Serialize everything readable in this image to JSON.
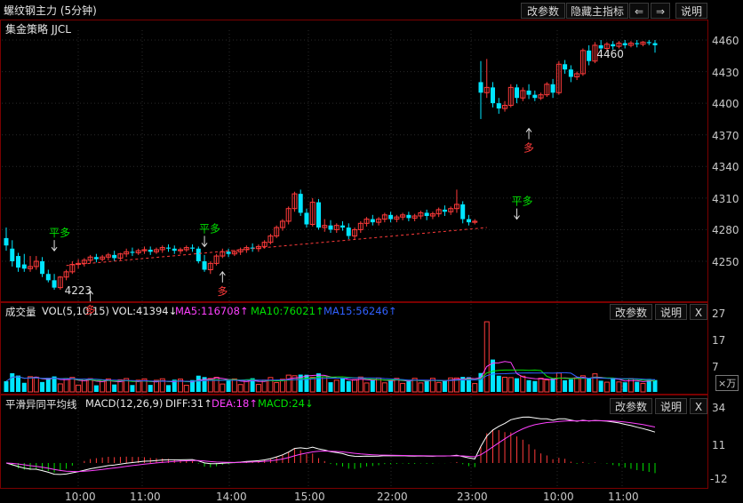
{
  "header": {
    "title": "螺纹钢主力 (5分钟)",
    "subtitle": "集金策略 JJCL",
    "buttons": [
      "改参数",
      "隐藏主指标",
      "⇐",
      "⇒",
      "说明"
    ]
  },
  "colors": {
    "up": "#ff3b3b",
    "down": "#00e5ff",
    "ma5": "#ff40ff",
    "ma10": "#00e000",
    "ma15": "#3060ff",
    "frame": "#7a0000",
    "signal_up": "#ff3b3b",
    "signal_green": "#00e000"
  },
  "chart_data": [
    {
      "type": "candlestick",
      "ylim": [
        4220,
        4475
      ],
      "yticks": [
        "4460",
        "4430",
        "4400",
        "4370",
        "4340",
        "4310",
        "4280",
        "4250"
      ],
      "xticks": [
        "10:00",
        "11:00",
        "14:00",
        "15:00",
        "22:00",
        "23:00",
        "10:00",
        "11:00"
      ],
      "annotations": [
        {
          "text": "平多",
          "color": "green",
          "at": 8,
          "price": 4260
        },
        {
          "text": "平多",
          "color": "green",
          "at": 33,
          "price": 4264
        },
        {
          "text": "多",
          "color": "red",
          "at": 36,
          "price": 4240
        },
        {
          "text": "多",
          "color": "red",
          "at": 14,
          "price": 4222
        },
        {
          "text": "平多",
          "color": "green",
          "at": 85,
          "price": 4290
        },
        {
          "text": "多",
          "color": "red",
          "at": 87,
          "price": 4376
        }
      ],
      "price_labels": [
        {
          "text": "4223",
          "price": 4223
        },
        {
          "text": "4460",
          "price": 4455
        }
      ],
      "candles": [
        [
          4272,
          4282,
          4265,
          4260
        ],
        [
          4262,
          4270,
          4250,
          4245
        ],
        [
          4255,
          4258,
          4244,
          4240
        ],
        [
          4247,
          4257,
          4243,
          4240
        ],
        [
          4243,
          4255,
          4245,
          4240
        ],
        [
          4245,
          4255,
          4250,
          4242
        ],
        [
          4250,
          4254,
          4238,
          4235
        ],
        [
          4238,
          4242,
          4232,
          4230
        ],
        [
          4232,
          4238,
          4225,
          4223
        ],
        [
          4225,
          4236,
          4235,
          4223
        ],
        [
          4235,
          4242,
          4240,
          4232
        ],
        [
          4240,
          4250,
          4247,
          4238
        ],
        [
          4247,
          4252,
          4248,
          4243
        ],
        [
          4248,
          4253,
          4251,
          4245
        ],
        [
          4251,
          4256,
          4254,
          4248
        ],
        [
          4254,
          4257,
          4252,
          4249
        ],
        [
          4252,
          4256,
          4254,
          4250
        ],
        [
          4254,
          4258,
          4256,
          4251
        ],
        [
          4256,
          4260,
          4253,
          4250
        ],
        [
          4253,
          4258,
          4257,
          4251
        ],
        [
          4257,
          4262,
          4259,
          4254
        ],
        [
          4259,
          4263,
          4258,
          4255
        ],
        [
          4258,
          4262,
          4260,
          4256
        ],
        [
          4260,
          4264,
          4261,
          4257
        ],
        [
          4261,
          4264,
          4259,
          4256
        ],
        [
          4259,
          4263,
          4261,
          4257
        ],
        [
          4261,
          4265,
          4263,
          4258
        ],
        [
          4263,
          4266,
          4262,
          4259
        ],
        [
          4262,
          4265,
          4260,
          4257
        ],
        [
          4260,
          4263,
          4261,
          4257
        ],
        [
          4261,
          4265,
          4263,
          4259
        ],
        [
          4263,
          4266,
          4262,
          4259
        ],
        [
          4262,
          4264,
          4250,
          4248
        ],
        [
          4250,
          4256,
          4242,
          4240
        ],
        [
          4242,
          4250,
          4248,
          4238
        ],
        [
          4248,
          4257,
          4255,
          4246
        ],
        [
          4255,
          4262,
          4259,
          4253
        ],
        [
          4259,
          4262,
          4257,
          4254
        ],
        [
          4257,
          4261,
          4259,
          4255
        ],
        [
          4259,
          4263,
          4261,
          4256
        ],
        [
          4261,
          4265,
          4263,
          4258
        ],
        [
          4263,
          4267,
          4262,
          4259
        ],
        [
          4262,
          4266,
          4264,
          4259
        ],
        [
          4264,
          4270,
          4268,
          4262
        ],
        [
          4268,
          4276,
          4274,
          4266
        ],
        [
          4274,
          4284,
          4282,
          4272
        ],
        [
          4282,
          4290,
          4288,
          4279
        ],
        [
          4288,
          4302,
          4300,
          4285
        ],
        [
          4300,
          4316,
          4314,
          4297
        ],
        [
          4314,
          4318,
          4296,
          4293
        ],
        [
          4296,
          4300,
          4285,
          4282
        ],
        [
          4285,
          4310,
          4306,
          4283
        ],
        [
          4306,
          4309,
          4282,
          4280
        ],
        [
          4282,
          4290,
          4284,
          4278
        ],
        [
          4284,
          4289,
          4280,
          4277
        ],
        [
          4280,
          4286,
          4284,
          4277
        ],
        [
          4284,
          4288,
          4282,
          4279
        ],
        [
          4282,
          4286,
          4274,
          4271
        ],
        [
          4274,
          4282,
          4280,
          4271
        ],
        [
          4280,
          4288,
          4286,
          4277
        ],
        [
          4286,
          4292,
          4290,
          4283
        ],
        [
          4290,
          4294,
          4287,
          4284
        ],
        [
          4287,
          4292,
          4290,
          4284
        ],
        [
          4290,
          4296,
          4294,
          4287
        ],
        [
          4294,
          4297,
          4290,
          4287
        ],
        [
          4290,
          4294,
          4292,
          4287
        ],
        [
          4292,
          4296,
          4294,
          4289
        ],
        [
          4294,
          4297,
          4291,
          4288
        ],
        [
          4291,
          4295,
          4293,
          4288
        ],
        [
          4293,
          4298,
          4296,
          4290
        ],
        [
          4296,
          4299,
          4293,
          4289
        ],
        [
          4293,
          4297,
          4295,
          4290
        ],
        [
          4295,
          4301,
          4299,
          4292
        ],
        [
          4299,
          4303,
          4297,
          4293
        ],
        [
          4297,
          4302,
          4300,
          4294
        ],
        [
          4300,
          4318,
          4304,
          4296
        ],
        [
          4304,
          4307,
          4290,
          4286
        ],
        [
          4290,
          4294,
          4287,
          4284
        ],
        [
          4287,
          4290,
          4288,
          4285
        ],
        [
          4420,
          4440,
          4410,
          4385
        ],
        [
          4410,
          4442,
          4415,
          4405
        ],
        [
          4415,
          4420,
          4400,
          4396
        ],
        [
          4400,
          4405,
          4395,
          4390
        ],
        [
          4395,
          4402,
          4398,
          4392
        ],
        [
          4398,
          4418,
          4415,
          4396
        ],
        [
          4415,
          4418,
          4405,
          4400
        ],
        [
          4405,
          4415,
          4412,
          4402
        ],
        [
          4412,
          4418,
          4408,
          4404
        ],
        [
          4408,
          4412,
          4405,
          4402
        ],
        [
          4405,
          4410,
          4408,
          4403
        ],
        [
          4408,
          4420,
          4418,
          4406
        ],
        [
          4418,
          4423,
          4410,
          4405
        ],
        [
          4410,
          4440,
          4437,
          4408
        ],
        [
          4437,
          4441,
          4432,
          4428
        ],
        [
          4432,
          4436,
          4425,
          4420
        ],
        [
          4425,
          4430,
          4428,
          4422
        ],
        [
          4428,
          4452,
          4450,
          4426
        ],
        [
          4450,
          4455,
          4440,
          4436
        ],
        [
          4440,
          4458,
          4455,
          4438
        ],
        [
          4455,
          4460,
          4452,
          4449
        ],
        [
          4452,
          4458,
          4456,
          4450
        ],
        [
          4456,
          4459,
          4454,
          4451
        ],
        [
          4454,
          4459,
          4457,
          4452
        ],
        [
          4457,
          4460,
          4455,
          4452
        ],
        [
          4455,
          4459,
          4457,
          4453
        ],
        [
          4457,
          4460,
          4456,
          4453
        ],
        [
          4456,
          4459,
          4458,
          4454
        ],
        [
          4458,
          4460,
          4457,
          4455
        ],
        [
          4457,
          4460,
          4455,
          4448
        ]
      ]
    },
    {
      "type": "bar",
      "title": "成交量",
      "legend": [
        "VOL(5,10,15)",
        "VOL:41394↓",
        "MA5:116708↑",
        "MA10:76021↑",
        "MA15:56246↑"
      ],
      "yticks": [
        "27",
        "17",
        "7",
        "×万"
      ],
      "ylim": [
        0,
        28
      ],
      "buttons": [
        "改参数",
        "说明",
        "X"
      ]
    },
    {
      "type": "bar",
      "title": "平滑异同平均线",
      "legend": [
        "MACD(12,26,9)",
        "DIFF:31↑",
        "DEA:18↑",
        "MACD:24↓"
      ],
      "yticks": [
        "34",
        "11",
        "-12"
      ],
      "ylim": [
        -15,
        38
      ],
      "buttons": [
        "改参数",
        "说明",
        "X"
      ]
    }
  ]
}
